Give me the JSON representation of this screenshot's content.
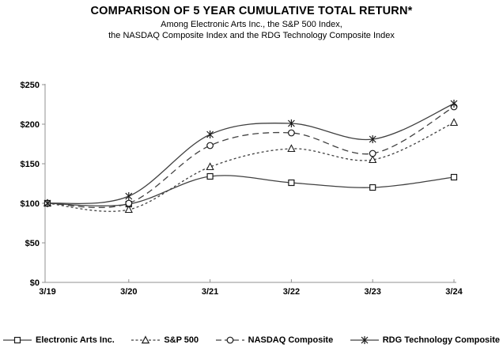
{
  "header": {
    "title": "COMPARISON OF 5 YEAR CUMULATIVE TOTAL RETURN*",
    "subtitle_line1": "Among Electronic Arts Inc., the S&P 500 Index,",
    "subtitle_line2": "the NASDAQ Composite Index and the RDG Technology Composite Index"
  },
  "chart_data": {
    "type": "line",
    "title": "COMPARISON OF 5 YEAR CUMULATIVE TOTAL RETURN*",
    "categories": [
      "3/19",
      "3/20",
      "3/21",
      "3/22",
      "3/23",
      "3/24"
    ],
    "series": [
      {
        "name": "Electronic Arts Inc.",
        "marker": "square",
        "line_style": "solid",
        "values": [
          100,
          99,
          134,
          126,
          120,
          133
        ]
      },
      {
        "name": "S&P 500",
        "marker": "triangle",
        "line_style": "dotted",
        "values": [
          100,
          92,
          146,
          169,
          155,
          202
        ]
      },
      {
        "name": "NASDAQ Composite",
        "marker": "circle",
        "line_style": "dashed",
        "values": [
          100,
          100,
          173,
          189,
          163,
          222
        ]
      },
      {
        "name": "RDG Technology Composite",
        "marker": "asterisk",
        "line_style": "solid",
        "values": [
          100,
          109,
          187,
          201,
          181,
          226
        ]
      }
    ],
    "y_ticks": [
      {
        "value": 0,
        "label": "$0"
      },
      {
        "value": 50,
        "label": "$50"
      },
      {
        "value": 100,
        "label": "$100"
      },
      {
        "value": 150,
        "label": "$150"
      },
      {
        "value": 200,
        "label": "$200"
      },
      {
        "value": 250,
        "label": "$250"
      }
    ],
    "ylim": [
      0,
      250
    ],
    "xlabel": "",
    "ylabel": "",
    "grid": false,
    "smoothed": true,
    "legend_position": "bottom",
    "line_color": "#404040",
    "marker_color": "#1a1a1a",
    "axis_color": "#909090",
    "background_color": "#ffffff"
  }
}
